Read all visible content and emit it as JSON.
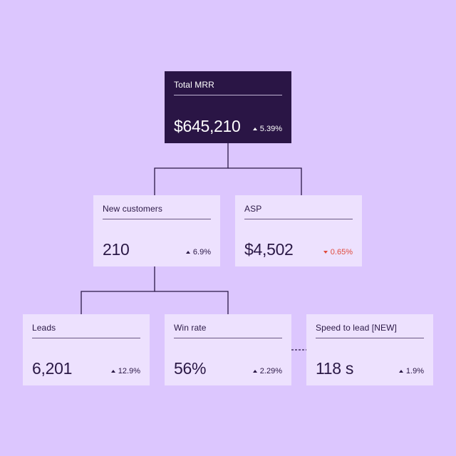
{
  "colors": {
    "background": "#dcc6fe",
    "card": "#ede1fe",
    "root_card": "#2a1545",
    "text": "#2a1845",
    "negative": "#e04b3c"
  },
  "nodes": {
    "total_mrr": {
      "label": "Total MRR",
      "value": "$645,210",
      "delta": "5.39%",
      "direction": "up"
    },
    "new_customers": {
      "label": "New customers",
      "value": "210",
      "delta": "6.9%",
      "direction": "up"
    },
    "asp": {
      "label": "ASP",
      "value": "$4,502",
      "delta": "0.65%",
      "direction": "down"
    },
    "leads": {
      "label": "Leads",
      "value": "6,201",
      "delta": "12.9%",
      "direction": "up"
    },
    "win_rate": {
      "label": "Win rate",
      "value": "56%",
      "delta": "2.29%",
      "direction": "up"
    },
    "speed_to_lead": {
      "label": "Speed to lead [NEW]",
      "value": "118 s",
      "delta": "1.9%",
      "direction": "up"
    }
  },
  "edges": [
    {
      "from": "total_mrr",
      "to": "new_customers",
      "style": "solid"
    },
    {
      "from": "total_mrr",
      "to": "asp",
      "style": "solid"
    },
    {
      "from": "new_customers",
      "to": "leads",
      "style": "solid"
    },
    {
      "from": "new_customers",
      "to": "win_rate",
      "style": "solid"
    },
    {
      "from": "win_rate",
      "to": "speed_to_lead",
      "style": "dashed"
    }
  ]
}
